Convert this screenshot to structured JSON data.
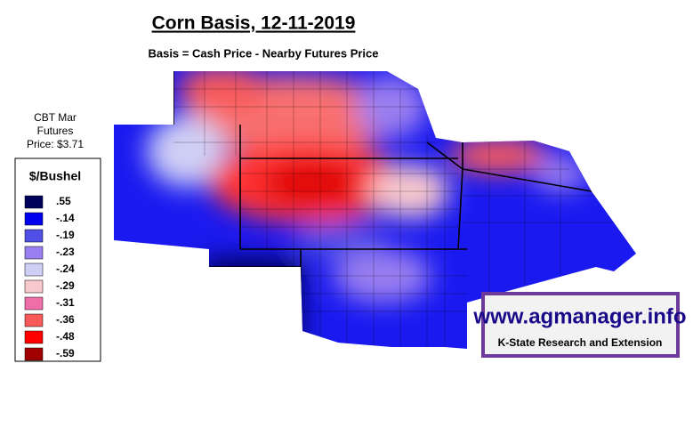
{
  "title": "Corn Basis, 12-11-2019",
  "subtitle": "Basis = Cash Price - Nearby Futures Price",
  "futures_note": [
    "CBT Mar",
    "Futures",
    "Price: $3.71"
  ],
  "legend": {
    "title": "$/Bushel",
    "items": [
      {
        "label": ".55",
        "color": "#00005a"
      },
      {
        "label": "-.14",
        "color": "#0000ee"
      },
      {
        "label": "-.19",
        "color": "#5050e6"
      },
      {
        "label": "-.23",
        "color": "#9a7ff0"
      },
      {
        "label": "-.24",
        "color": "#cfcff5"
      },
      {
        "label": "-.29",
        "color": "#f7c8cc"
      },
      {
        "label": "-.31",
        "color": "#f06ea8"
      },
      {
        "label": "-.36",
        "color": "#f85a5a"
      },
      {
        "label": "-.48",
        "color": "#ff0000"
      },
      {
        "label": "-.59",
        "color": "#a00000"
      }
    ]
  },
  "logo": {
    "url": "www.agmanager.info",
    "org": "K-State Research and Extension"
  }
}
